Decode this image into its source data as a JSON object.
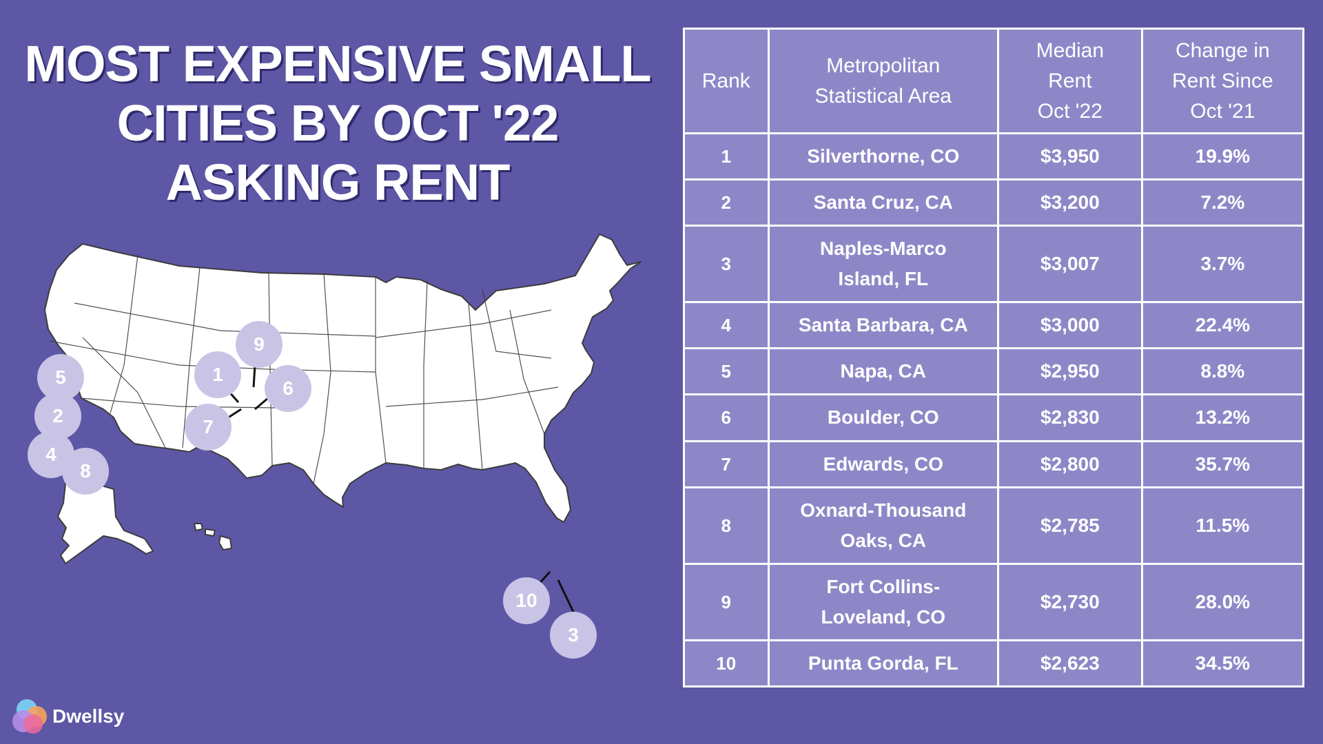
{
  "title": {
    "line1": "MOST EXPENSIVE SMALL",
    "line2": "CITIES BY OCT '22",
    "line3": "ASKING RENT"
  },
  "table": {
    "headers": [
      "Rank",
      "Metropolitan Statistical Area",
      "Median Rent Oct '22",
      "Change in Rent Since Oct '21"
    ],
    "rows": [
      {
        "rank": "1",
        "area": "Silverthorne, CO",
        "rent": "$3,950",
        "change": "19.9%"
      },
      {
        "rank": "2",
        "area": "Santa Cruz, CA",
        "rent": "$3,200",
        "change": "7.2%"
      },
      {
        "rank": "3",
        "area": "Naples-Marco Island, FL",
        "rent": "$3,007",
        "change": "3.7%"
      },
      {
        "rank": "4",
        "area": "Santa Barbara, CA",
        "rent": "$3,000",
        "change": "22.4%"
      },
      {
        "rank": "5",
        "area": "Napa, CA",
        "rent": "$2,950",
        "change": "8.8%"
      },
      {
        "rank": "6",
        "area": "Boulder, CO",
        "rent": "$2,830",
        "change": "13.2%"
      },
      {
        "rank": "7",
        "area": "Edwards, CO",
        "rent": "$2,800",
        "change": "35.7%"
      },
      {
        "rank": "8",
        "area": "Oxnard-Thousand Oaks, CA",
        "rent": "$2,785",
        "change": "11.5%"
      },
      {
        "rank": "9",
        "area": "Fort Collins-Loveland, CO",
        "rent": "$2,730",
        "change": "28.0%"
      },
      {
        "rank": "10",
        "area": "Punta Gorda, FL",
        "rent": "$2,623",
        "change": "34.5%"
      }
    ]
  },
  "map_pins": [
    "1",
    "2",
    "3",
    "4",
    "5",
    "6",
    "7",
    "8",
    "9",
    "10"
  ],
  "brand": {
    "name": "Dwellsy"
  },
  "colors": {
    "background": "#5e57a6",
    "table_fill": "#8e87c7",
    "pin_fill": "#c9c4e6",
    "map_fill": "#ffffff"
  }
}
